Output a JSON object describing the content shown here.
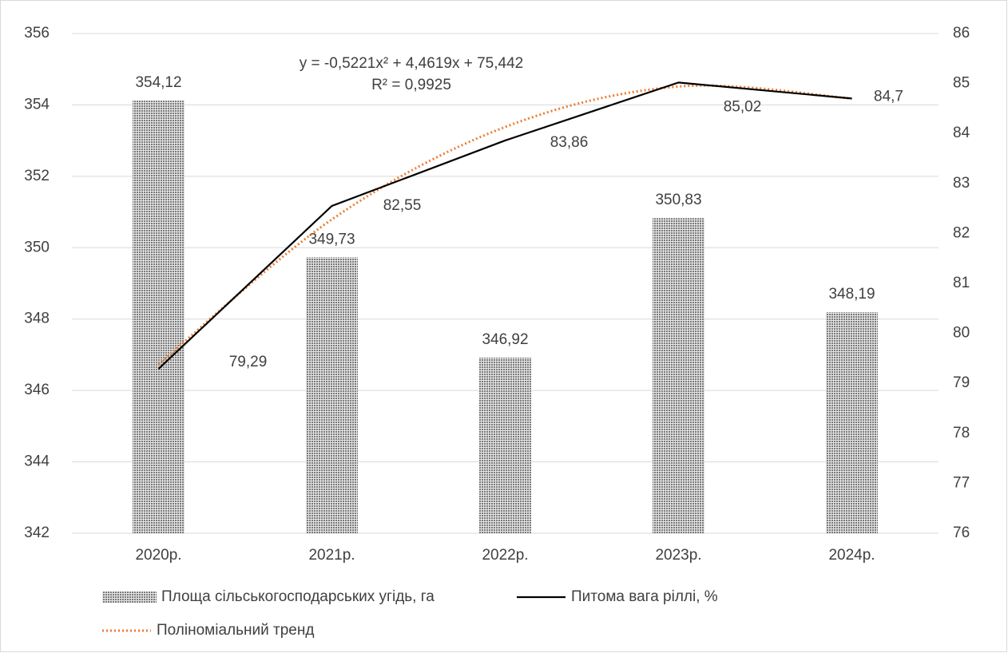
{
  "chart_data": {
    "type": "combo",
    "categories": [
      "2020р.",
      "2021р.",
      "2022р.",
      "2023р.",
      "2024р."
    ],
    "series": [
      {
        "name": "Площа сільськогосподарських угідь, га",
        "type": "bar",
        "color": "#808080",
        "values": [
          354.12,
          349.73,
          346.92,
          350.83,
          348.19
        ],
        "value_labels": [
          "354,12",
          "349,73",
          "346,92",
          "350,83",
          "348,19"
        ]
      },
      {
        "name": "Питома вага ріллі, %",
        "type": "line",
        "axis": "y2",
        "color": "#000000",
        "values": [
          79.29,
          82.55,
          83.86,
          85.02,
          84.7
        ],
        "value_labels": [
          "79,29",
          "82,55",
          "83,86",
          "85,02",
          "84,7"
        ]
      },
      {
        "name": "Поліноміальний тренд",
        "type": "trend",
        "axis": "y2",
        "color": "#ed7d31",
        "values": [
          79.38,
          82.28,
          84.13,
          84.94,
          84.7
        ]
      }
    ],
    "annotations": [
      "y = -0,5221x² + 4,4619x + 75,442",
      "R² = 0,9925"
    ],
    "ylim": [
      342,
      356
    ],
    "yticks": [
      342,
      344,
      346,
      348,
      350,
      352,
      354,
      356
    ],
    "y2lim": [
      76,
      86
    ],
    "y2ticks": [
      76,
      77,
      78,
      79,
      80,
      81,
      82,
      83,
      84,
      85,
      86
    ],
    "grid": true
  }
}
